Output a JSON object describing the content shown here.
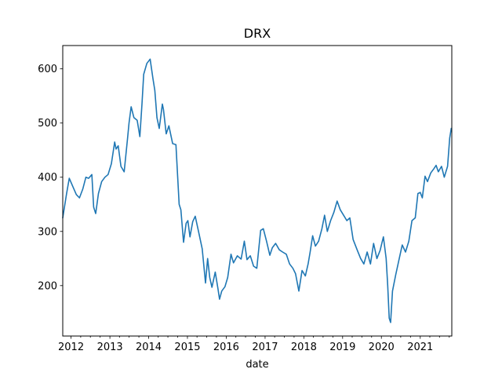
{
  "chart_data": {
    "type": "line",
    "title": "DRX",
    "xlabel": "date",
    "ylabel": "",
    "xlim": [
      "2011-10-15",
      "2021-10-25"
    ],
    "ylim": [
      107,
      643
    ],
    "x_ticks": [
      "2012",
      "2013",
      "2014",
      "2015",
      "2016",
      "2017",
      "2018",
      "2019",
      "2020",
      "2021"
    ],
    "y_ticks": [
      200,
      300,
      400,
      500,
      600
    ],
    "grid": false,
    "legend": "none",
    "line_color": "#1f77b4",
    "series": [
      {
        "x": [
          "2011-10-15",
          "2011-11-20",
          "2011-12-15",
          "2012-01-20",
          "2012-02-20",
          "2012-03-20",
          "2012-04-20",
          "2012-05-20",
          "2012-06-15",
          "2012-07-15",
          "2012-08-01",
          "2012-08-20",
          "2012-09-15",
          "2012-10-15",
          "2012-11-15",
          "2012-12-15",
          "2013-01-15",
          "2013-02-15",
          "2013-02-28",
          "2013-03-20",
          "2013-04-15",
          "2013-05-15",
          "2013-06-15",
          "2013-06-30",
          "2013-07-20",
          "2013-08-15",
          "2013-09-15",
          "2013-10-10",
          "2013-10-30",
          "2013-11-15",
          "2013-12-15",
          "2014-01-15",
          "2014-02-10",
          "2014-02-28",
          "2014-03-20",
          "2014-04-10",
          "2014-05-10",
          "2014-05-20",
          "2014-06-15",
          "2014-07-10",
          "2014-08-15",
          "2014-09-15",
          "2014-10-15",
          "2014-10-31",
          "2014-11-25",
          "2014-12-20",
          "2015-01-05",
          "2015-01-25",
          "2015-02-20",
          "2015-03-15",
          "2015-04-15",
          "2015-05-20",
          "2015-06-20",
          "2015-07-10",
          "2015-07-30",
          "2015-08-20",
          "2015-09-20",
          "2015-10-15",
          "2015-10-30",
          "2015-11-20",
          "2015-12-20",
          "2016-01-15",
          "2016-02-15",
          "2016-03-10",
          "2016-04-15",
          "2016-05-20",
          "2016-06-20",
          "2016-07-15",
          "2016-08-15",
          "2016-09-15",
          "2016-10-15",
          "2016-11-20",
          "2016-12-15",
          "2017-01-15",
          "2017-02-15",
          "2017-03-10",
          "2017-04-10",
          "2017-05-15",
          "2017-06-15",
          "2017-07-20",
          "2017-08-20",
          "2017-09-20",
          "2017-10-15",
          "2017-11-15",
          "2017-12-15",
          "2018-01-15",
          "2018-02-10",
          "2018-03-01",
          "2018-03-25",
          "2018-04-20",
          "2018-05-20",
          "2018-06-20",
          "2018-07-15",
          "2018-08-10",
          "2018-09-10",
          "2018-10-10",
          "2018-11-10",
          "2018-12-10",
          "2019-01-10",
          "2019-02-10",
          "2019-03-10",
          "2019-04-10",
          "2019-05-20",
          "2019-06-20",
          "2019-07-20",
          "2019-08-20",
          "2019-09-20",
          "2019-10-20",
          "2019-11-20",
          "2019-12-20",
          "2020-01-20",
          "2020-02-15",
          "2020-03-01",
          "2020-03-15",
          "2020-03-28",
          "2020-04-15",
          "2020-05-15",
          "2020-06-15",
          "2020-07-15",
          "2020-08-15",
          "2020-09-15",
          "2020-10-15",
          "2020-11-15",
          "2020-12-10",
          "2021-01-01",
          "2021-01-20",
          "2021-02-15",
          "2021-03-10",
          "2021-04-10",
          "2021-05-10",
          "2021-05-30",
          "2021-06-20",
          "2021-07-20",
          "2021-08-15",
          "2021-09-15",
          "2021-10-05",
          "2021-10-20"
        ],
        "y": [
          325,
          370,
          398,
          382,
          368,
          362,
          378,
          400,
          398,
          405,
          345,
          333,
          370,
          392,
          400,
          405,
          425,
          465,
          452,
          458,
          420,
          410,
          470,
          500,
          530,
          510,
          505,
          475,
          535,
          590,
          610,
          618,
          582,
          560,
          510,
          490,
          535,
          525,
          480,
          495,
          462,
          460,
          350,
          340,
          280,
          315,
          320,
          290,
          318,
          328,
          300,
          268,
          205,
          250,
          215,
          197,
          225,
          195,
          175,
          190,
          198,
          215,
          258,
          242,
          255,
          249,
          282,
          248,
          255,
          236,
          232,
          302,
          305,
          282,
          256,
          270,
          278,
          266,
          262,
          258,
          240,
          232,
          222,
          190,
          228,
          218,
          240,
          262,
          292,
          273,
          282,
          305,
          330,
          300,
          320,
          335,
          356,
          340,
          330,
          320,
          325,
          285,
          265,
          250,
          240,
          262,
          240,
          278,
          250,
          265,
          290,
          250,
          200,
          140,
          132,
          190,
          220,
          248,
          275,
          262,
          282,
          320,
          325,
          370,
          372,
          362,
          402,
          392,
          408,
          416,
          422,
          410,
          420,
          400,
          420,
          472,
          490
        ]
      }
    ]
  }
}
